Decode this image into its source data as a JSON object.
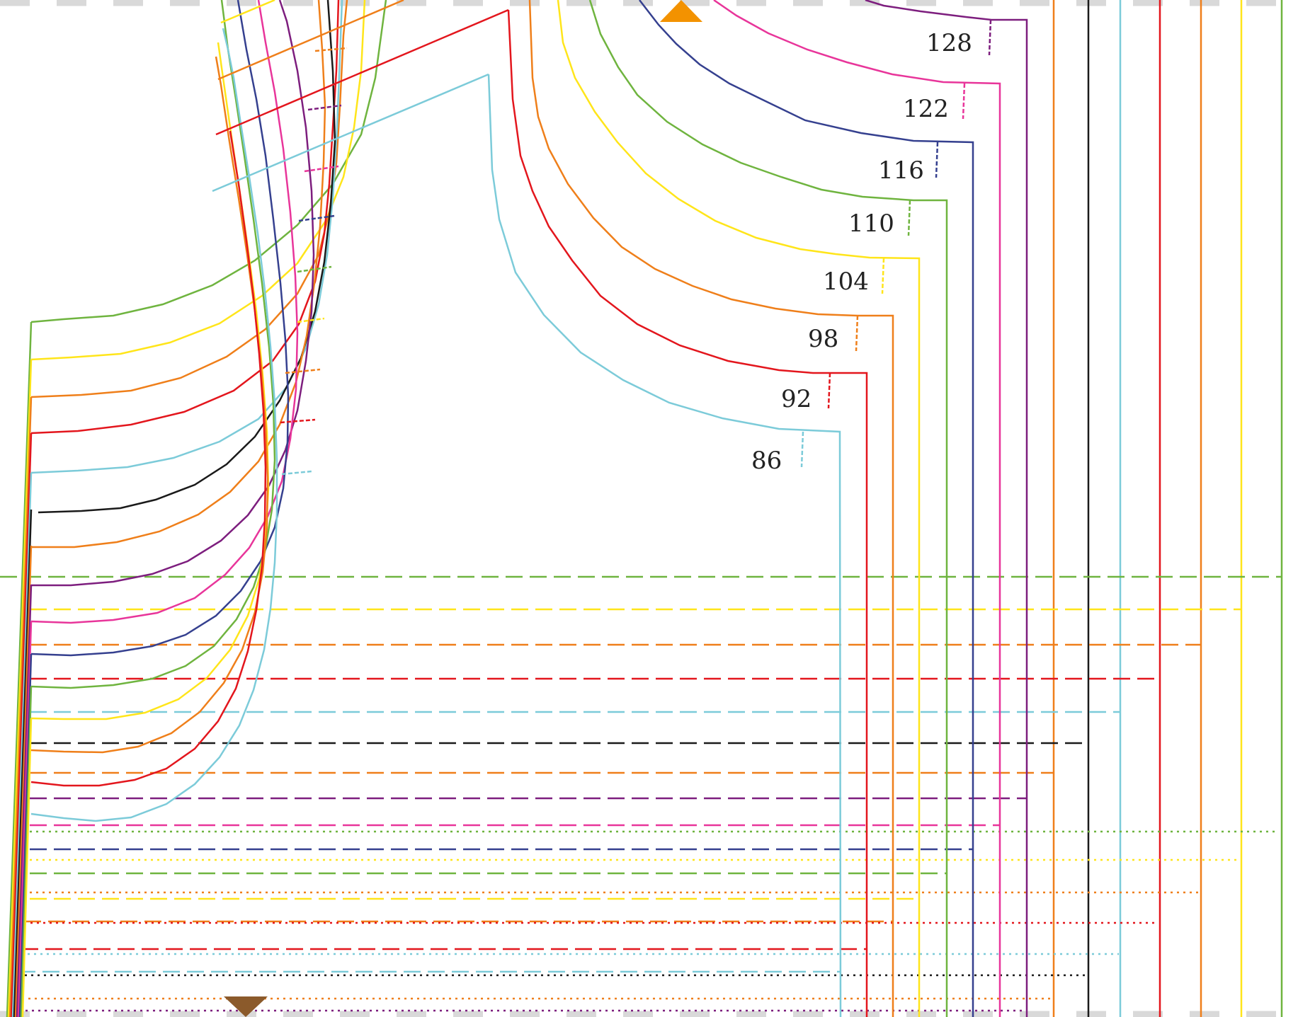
{
  "colors": {
    "s86": "#7ccbd9",
    "s92": "#e3161d",
    "s98": "#ef7f1a",
    "s104": "#ffe51a",
    "s110": "#6fb43f",
    "s116": "#35408f",
    "s122": "#e8359a",
    "s128": "#7d1e7e",
    "black": "#1a1a1a",
    "brown": "#8b5a2b",
    "grey_border": "#d9d9d9"
  },
  "size_labels": [
    "86",
    "92",
    "98",
    "104",
    "110",
    "116",
    "122",
    "128"
  ],
  "markers": {
    "top_triangle_icon": "up-triangle",
    "bottom_triangle_icon": "down-triangle"
  }
}
